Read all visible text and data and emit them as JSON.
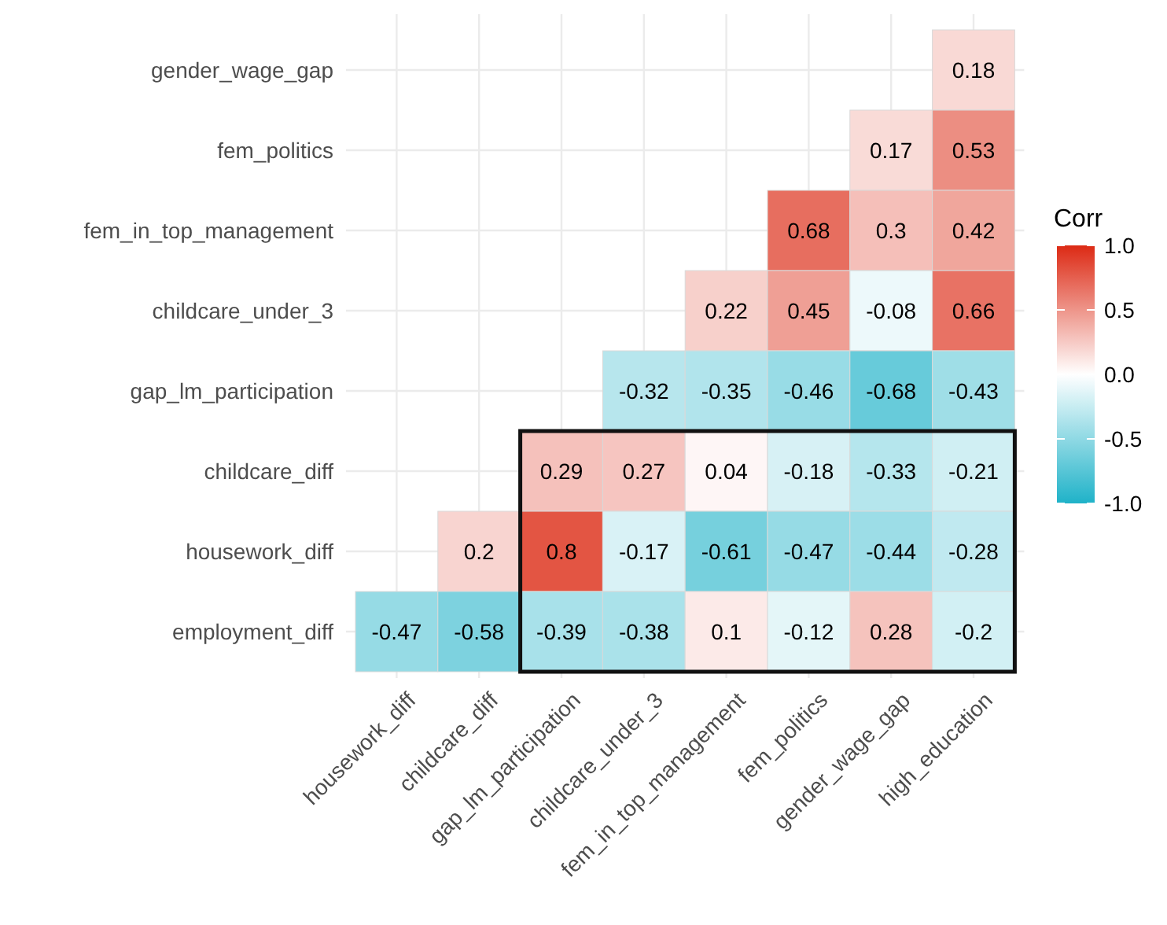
{
  "chart_data": {
    "type": "heatmap",
    "clabel": "Corr",
    "categories": [
      "housework_diff",
      "childcare_diff",
      "gap_lm_participation",
      "childcare_under_3",
      "fem_in_top_management",
      "fem_politics",
      "gender_wage_gap",
      "high_education"
    ],
    "y_categories": [
      "gender_wage_gap",
      "fem_politics",
      "fem_in_top_management",
      "childcare_under_3",
      "gap_lm_participation",
      "childcare_diff",
      "housework_diff",
      "employment_diff"
    ],
    "cells": [
      [
        null,
        null,
        null,
        null,
        null,
        null,
        null,
        0.18
      ],
      [
        null,
        null,
        null,
        null,
        null,
        null,
        0.17,
        0.53
      ],
      [
        null,
        null,
        null,
        null,
        null,
        0.68,
        0.3,
        0.42
      ],
      [
        null,
        null,
        null,
        null,
        0.22,
        0.45,
        -0.08,
        0.66
      ],
      [
        null,
        null,
        null,
        -0.32,
        -0.35,
        -0.46,
        -0.68,
        -0.43
      ],
      [
        null,
        null,
        0.29,
        0.27,
        0.04,
        -0.18,
        -0.33,
        -0.21
      ],
      [
        null,
        0.2,
        0.8,
        -0.17,
        -0.61,
        -0.47,
        -0.44,
        -0.28
      ],
      [
        -0.47,
        -0.58,
        -0.39,
        -0.38,
        0.1,
        -0.12,
        0.28,
        -0.2
      ]
    ],
    "clim": [
      -1,
      1
    ],
    "cticks": [
      {
        "value": 1,
        "label": "1.0"
      },
      {
        "value": 0.5,
        "label": "0.5"
      },
      {
        "value": 0,
        "label": "0.0"
      },
      {
        "value": -0.5,
        "label": "-0.5"
      },
      {
        "value": -1,
        "label": "-1.0"
      }
    ],
    "data_labels": true,
    "grid": true
  }
}
